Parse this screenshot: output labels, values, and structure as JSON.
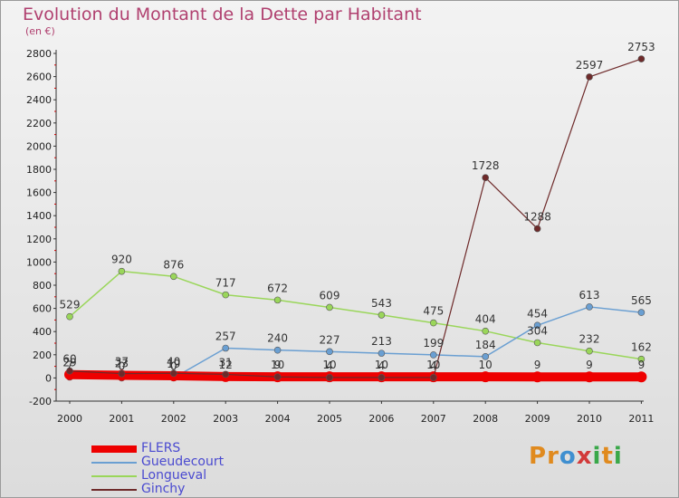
{
  "header": {
    "title": "Evolution du Montant de la Dette par Habitant",
    "unit": "(en €)"
  },
  "logo": {
    "letters": [
      "P",
      "r",
      "o",
      "x",
      "i",
      "t",
      "i"
    ],
    "colors": [
      "#e08a1e",
      "#e08a1e",
      "#3f8fd0",
      "#d23a3a",
      "#3aa84a",
      "#e08a1e",
      "#3aa84a"
    ]
  },
  "chart_data": {
    "type": "line",
    "title": "Evolution du Montant de la Dette par Habitant",
    "ylabel": "(en €)",
    "xlabel": "",
    "x": [
      "2000",
      "2001",
      "2002",
      "2003",
      "2004",
      "2005",
      "2006",
      "2007",
      "2008",
      "2009",
      "2010",
      "2011"
    ],
    "ylim": [
      -200,
      2800
    ],
    "yticks": [
      -200,
      0,
      200,
      400,
      600,
      800,
      1000,
      1200,
      1400,
      1600,
      1800,
      2000,
      2200,
      2400,
      2600,
      2800
    ],
    "grid": false,
    "legend_position": "bottom-left",
    "series": [
      {
        "name": "FLERS",
        "color": "#ee0000",
        "width": 10,
        "values": [
          29,
          23,
          19,
          12,
          10,
          10,
          10,
          10,
          10,
          9,
          9,
          9
        ]
      },
      {
        "name": "Gueudecourt",
        "color": "#6a9fd2",
        "width": 1.5,
        "values": [
          7,
          0,
          0,
          257,
          240,
          227,
          213,
          199,
          184,
          454,
          613,
          565
        ]
      },
      {
        "name": "Longueval",
        "color": "#9ad65a",
        "width": 1.5,
        "values": [
          529,
          920,
          876,
          717,
          672,
          609,
          543,
          475,
          404,
          304,
          232,
          162
        ]
      },
      {
        "name": "Ginchy",
        "color": "#6e2a2a",
        "width": 1.2,
        "values": [
          60,
          37,
          40,
          31,
          9,
          4,
          4,
          4,
          1728,
          1288,
          2597,
          2753
        ]
      }
    ]
  }
}
